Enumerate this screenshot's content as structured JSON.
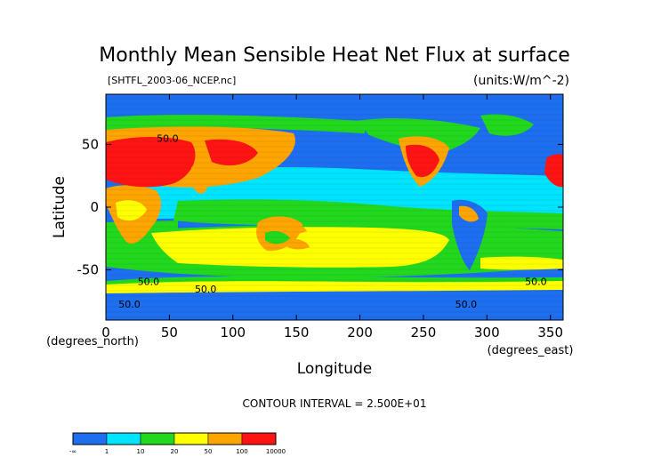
{
  "chart_data": {
    "type": "heatmap",
    "title": "Monthly Mean Sensible Heat Net Flux at surface",
    "file_label": "[SHTFL_2003-06_NCEP.nc]",
    "units_label": "(units:W/m^-2)",
    "xlabel": "Longitude",
    "ylabel": "Latitude",
    "x_unit_label": "(degrees_east)",
    "y_unit_label": "(degrees_north)",
    "xlim": [
      0,
      360
    ],
    "ylim": [
      -90,
      90
    ],
    "x_ticks": [
      0,
      50,
      100,
      150,
      200,
      250,
      300,
      350
    ],
    "y_ticks": [
      50,
      0,
      -50
    ],
    "contour_interval_label": "CONTOUR INTERVAL = 2.500E+01",
    "contour_labels": [
      "50.0",
      "50.0",
      "50.0",
      "50.0",
      "50.0",
      "50.0"
    ],
    "colorbar": {
      "tick_labels": [
        "-∞",
        "1",
        "10",
        "20",
        "50",
        "100",
        "10000"
      ],
      "bins": [
        {
          "range": "-∞ to 1",
          "color": "#1e6ef0"
        },
        {
          "range": "1 to 10",
          "color": "#00e4ff"
        },
        {
          "range": "10 to 20",
          "color": "#22d81e"
        },
        {
          "range": "20 to 50",
          "color": "#ffff00"
        },
        {
          "range": "50 to 100",
          "color": "#ffa500"
        },
        {
          "range": "100 to 10000",
          "color": "#ff1414"
        }
      ]
    }
  }
}
